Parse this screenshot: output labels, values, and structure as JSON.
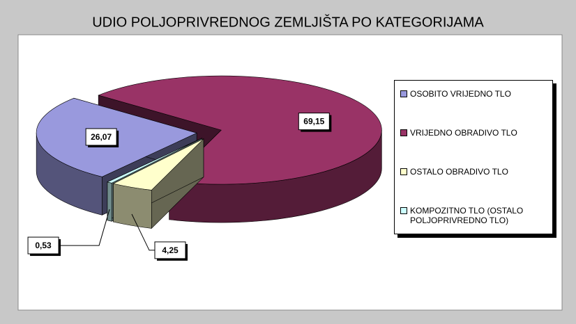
{
  "chart_data": {
    "type": "pie3d",
    "title": "UDIO POLJOPRIVREDNOG ZEMLJIŠTA PO KATEGORIJAMA",
    "categories": [
      "OSOBITO VRIJEDNO TLO",
      "VRIJEDNO OBRADIVO TLO",
      "OSTALO OBRADIVO TLO",
      "KOMPOZITNO TLO (OSTALO POLJOPRIVREDNO TLO)"
    ],
    "values": [
      26.07,
      69.15,
      4.25,
      0.53
    ],
    "value_labels": [
      "26,07",
      "69,15",
      "4,25",
      "0,53"
    ],
    "colors": [
      "#9999dd",
      "#993366",
      "#ffffcc",
      "#ccffff"
    ],
    "legend": "right"
  }
}
